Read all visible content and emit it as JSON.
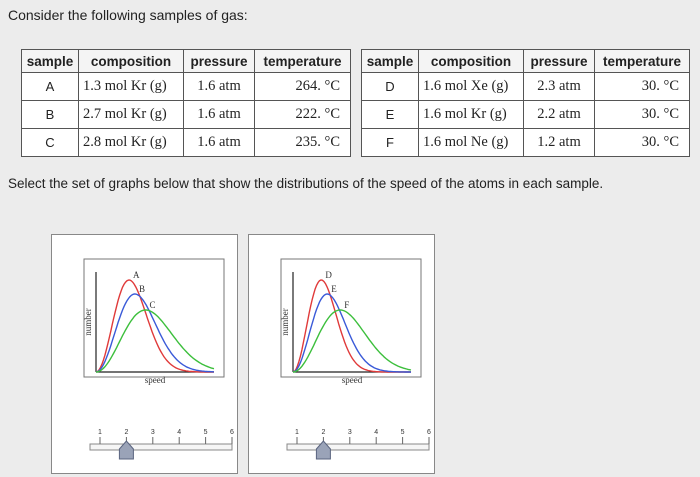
{
  "prompt": "Consider the following samples of gas:",
  "instruction": "Select the set of graphs below that show the distributions of the speed of the atoms in each sample.",
  "table_headers": {
    "sample": "sample",
    "composition": "composition",
    "pressure": "pressure",
    "temperature": "temperature"
  },
  "tables": [
    {
      "rows": [
        {
          "sample": "A",
          "composition": "1.3 mol Kr (g)",
          "pressure": "1.6 atm",
          "temperature": "264. °C"
        },
        {
          "sample": "B",
          "composition": "2.7 mol Kr (g)",
          "pressure": "1.6 atm",
          "temperature": "222. °C"
        },
        {
          "sample": "C",
          "composition": "2.8 mol Kr (g)",
          "pressure": "1.6 atm",
          "temperature": "235. °C"
        }
      ]
    },
    {
      "rows": [
        {
          "sample": "D",
          "composition": "1.6 mol Xe (g)",
          "pressure": "2.3 atm",
          "temperature": "30. °C"
        },
        {
          "sample": "E",
          "composition": "1.6 mol Kr (g)",
          "pressure": "2.2 atm",
          "temperature": "30. °C"
        },
        {
          "sample": "F",
          "composition": "1.6 mol Ne (g)",
          "pressure": "1.2 atm",
          "temperature": "30. °C"
        }
      ]
    }
  ],
  "graphs": [
    {
      "ylabel": "number",
      "xlabel": "speed",
      "curves": [
        {
          "label": "A",
          "color": "#e03a3a",
          "peak": 0.28,
          "height": 0.92
        },
        {
          "label": "B",
          "color": "#3a5ad8",
          "peak": 0.33,
          "height": 0.78
        },
        {
          "label": "C",
          "color": "#3cbf3c",
          "peak": 0.42,
          "height": 0.62
        }
      ],
      "slider": {
        "ticks": [
          "1",
          "2",
          "3",
          "4",
          "5",
          "6"
        ],
        "value": 2
      }
    },
    {
      "ylabel": "number",
      "xlabel": "speed",
      "curves": [
        {
          "label": "D",
          "color": "#e03a3a",
          "peak": 0.24,
          "height": 0.92
        },
        {
          "label": "E",
          "color": "#3a5ad8",
          "peak": 0.29,
          "height": 0.78
        },
        {
          "label": "F",
          "color": "#3cbf3c",
          "peak": 0.4,
          "height": 0.62
        }
      ],
      "slider": {
        "ticks": [
          "1",
          "2",
          "3",
          "4",
          "5",
          "6"
        ],
        "value": 2
      }
    }
  ]
}
